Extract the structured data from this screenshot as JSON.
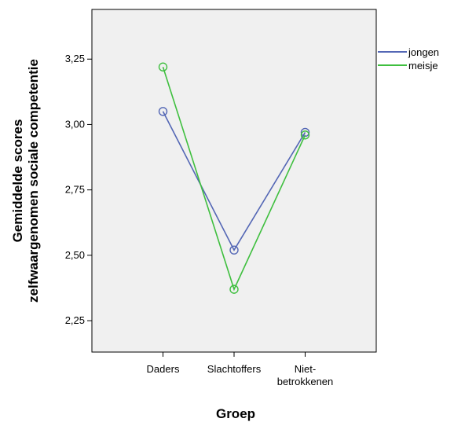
{
  "chart_data": {
    "type": "line",
    "categories": [
      "Daders",
      "Slachtoffers",
      "Niet-betrokkenen"
    ],
    "category_labels": [
      [
        "Daders"
      ],
      [
        "Slachtoffers"
      ],
      [
        "Niet-",
        "betrokkenen"
      ]
    ],
    "series": [
      {
        "name": "jongen",
        "values": [
          3.05,
          2.52,
          2.97
        ],
        "color": "#5467b5"
      },
      {
        "name": "meisje",
        "values": [
          3.22,
          2.37,
          2.96
        ],
        "color": "#3fbf3f"
      }
    ],
    "xlabel": "Groep",
    "ylabel": [
      "Gemiddelde scores",
      "zelfwaargenomen sociale competentie"
    ],
    "ylim": [
      2.13,
      3.44
    ],
    "yticks": [
      2.25,
      2.5,
      2.75,
      3.0,
      3.25
    ],
    "ytick_labels": [
      "2,25",
      "2,50",
      "2,75",
      "3,00",
      "3,25"
    ],
    "markers": "circle-open",
    "plot_background": "#f0f0f0",
    "grid": false,
    "legend_position": "right"
  }
}
